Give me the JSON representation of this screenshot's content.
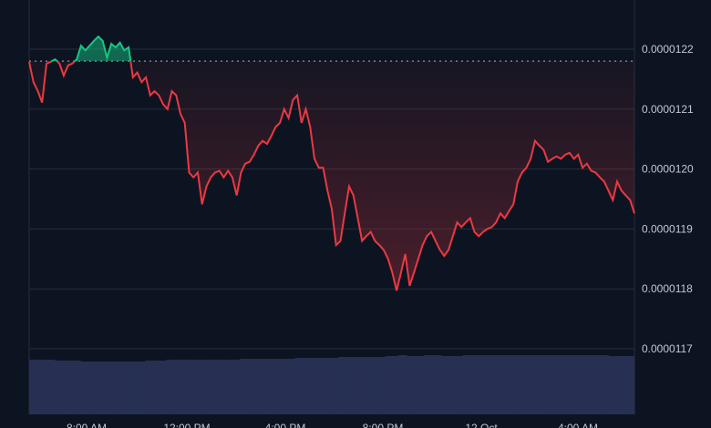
{
  "chart_data": {
    "type": "area",
    "title": "",
    "xlabel": "",
    "ylabel": "",
    "y_ticks": [
      "0.0000122",
      "0.0000121",
      "0.0000120",
      "0.0000119",
      "0.0000118",
      "0.0000117"
    ],
    "ylim": [
      1.17e-05,
      1.228e-05
    ],
    "x_ticks": [
      "8:00 AM",
      "12:00 PM",
      "4:00 PM",
      "8:00 PM",
      "12 Oct",
      "4:00 AM"
    ],
    "baseline": 1.218e-05,
    "grid": true,
    "colors": {
      "up": "#16c784",
      "down": "#ea3943",
      "volume": "#273052",
      "grid": "#252c3b",
      "background": "#0d1421"
    },
    "price": [
      1.2179e-05,
      1.2145e-05,
      1.213e-05,
      1.2111e-05,
      1.2176e-05,
      1.2179e-05,
      1.2183e-05,
      1.2176e-05,
      1.2156e-05,
      1.2173e-05,
      1.2176e-05,
      1.2183e-05,
      1.2206e-05,
      1.2198e-05,
      1.2206e-05,
      1.2214e-05,
      1.2221e-05,
      1.2214e-05,
      1.2186e-05,
      1.2209e-05,
      1.2203e-05,
      1.2211e-05,
      1.2198e-05,
      1.2203e-05,
      1.2153e-05,
      1.2161e-05,
      1.2145e-05,
      1.2153e-05,
      1.2123e-05,
      1.213e-05,
      1.2123e-05,
      1.2108e-05,
      1.21e-05,
      1.213e-05,
      1.2123e-05,
      1.2092e-05,
      1.2077e-05,
      1.1994e-05,
      1.1986e-05,
      1.1994e-05,
      1.1941e-05,
      1.1971e-05,
      1.1986e-05,
      1.1994e-05,
      1.1997e-05,
      1.1986e-05,
      1.1997e-05,
      1.1986e-05,
      1.1956e-05,
      1.1994e-05,
      1.2009e-05,
      1.2012e-05,
      1.2024e-05,
      1.2039e-05,
      1.2047e-05,
      1.2042e-05,
      1.2055e-05,
      1.207e-05,
      1.2077e-05,
      1.21e-05,
      1.2085e-05,
      1.2115e-05,
      1.2123e-05,
      1.2077e-05,
      1.21e-05,
      1.207e-05,
      1.2017e-05,
      1.2002e-05,
      1.2002e-05,
      1.1964e-05,
      1.1933e-05,
      1.1873e-05,
      1.188e-05,
      1.1926e-05,
      1.1971e-05,
      1.1956e-05,
      1.1918e-05,
      1.188e-05,
      1.1888e-05,
      1.1895e-05,
      1.188e-05,
      1.1873e-05,
      1.1865e-05,
      1.185e-05,
      1.1827e-05,
      1.1797e-05,
      1.1827e-05,
      1.1858e-05,
      1.1805e-05,
      1.1827e-05,
      1.185e-05,
      1.1873e-05,
      1.1888e-05,
      1.1895e-05,
      1.188e-05,
      1.1865e-05,
      1.1855e-05,
      1.1865e-05,
      1.1888e-05,
      1.1911e-05,
      1.1903e-05,
      1.1911e-05,
      1.1918e-05,
      1.1895e-05,
      1.1888e-05,
      1.1895e-05,
      1.19e-05,
      1.1903e-05,
      1.1911e-05,
      1.1926e-05,
      1.1918e-05,
      1.193e-05,
      1.1941e-05,
      1.1979e-05,
      1.1994e-05,
      1.2002e-05,
      1.2017e-05,
      1.2047e-05,
      1.2039e-05,
      1.2032e-05,
      1.2012e-05,
      1.2017e-05,
      1.2021e-05,
      1.2017e-05,
      1.2024e-05,
      1.2027e-05,
      1.2017e-05,
      1.2024e-05,
      1.2002e-05,
      1.2009e-05,
      1.1997e-05,
      1.1994e-05,
      1.1986e-05,
      1.1979e-05,
      1.1964e-05,
      1.1948e-05,
      1.1979e-05,
      1.1964e-05,
      1.1956e-05,
      1.1948e-05,
      1.1926e-05
    ],
    "volume": [
      60,
      60,
      60,
      60,
      60,
      60,
      59,
      59,
      59,
      59,
      59,
      59,
      58,
      58,
      58,
      58,
      58,
      58,
      58,
      58,
      58,
      58,
      58,
      58,
      58,
      58,
      58,
      59,
      59,
      59,
      59,
      59,
      60,
      60,
      60,
      60,
      60,
      60,
      60,
      60,
      60,
      60,
      60,
      60,
      60,
      60,
      60,
      60,
      60,
      61,
      61,
      61,
      61,
      61,
      61,
      61,
      61,
      61,
      61,
      61,
      61,
      61,
      62,
      62,
      62,
      62,
      62,
      62,
      62,
      62,
      62,
      62,
      63,
      63,
      63,
      63,
      63,
      63,
      63,
      63,
      63,
      63,
      63,
      64,
      64,
      64,
      65,
      65,
      64,
      64,
      64,
      64,
      65,
      65,
      65,
      65,
      64,
      64,
      64,
      64,
      64,
      65,
      65,
      65,
      65,
      65,
      65,
      65,
      65,
      65,
      65,
      65,
      65,
      65,
      65,
      65,
      65,
      65,
      65,
      65,
      65,
      65,
      65,
      65,
      65,
      65,
      65,
      65,
      65,
      65,
      65,
      65,
      65,
      65,
      65,
      64,
      64,
      64,
      64,
      64,
      64
    ]
  }
}
